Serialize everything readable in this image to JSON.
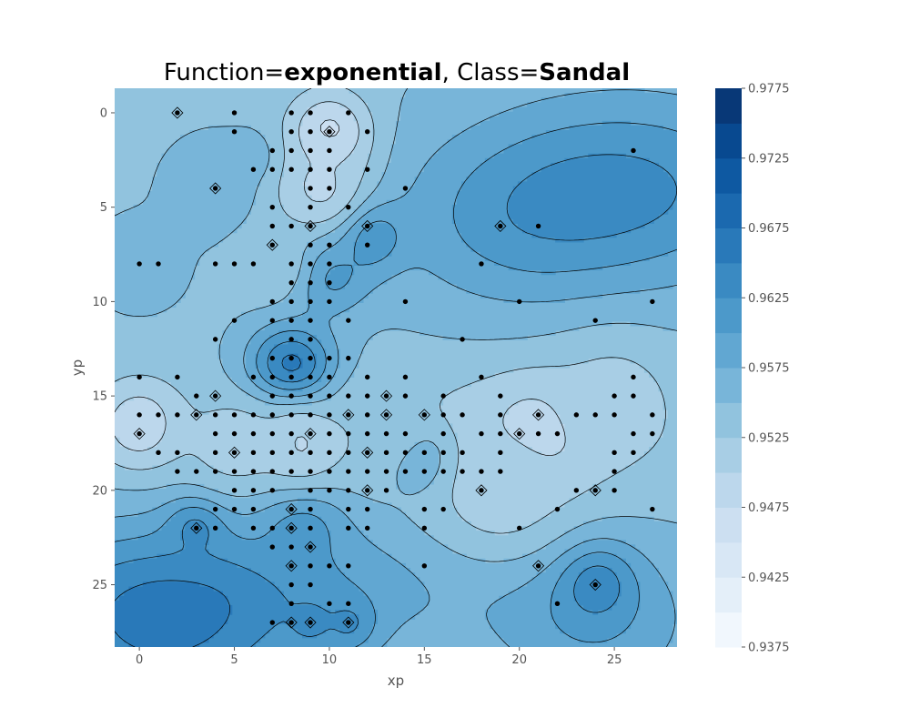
{
  "chart_data": {
    "type": "heatmap",
    "subtype": "filled-contour",
    "title_parts": [
      {
        "text": "Function=",
        "bold": false
      },
      {
        "text": "exponential",
        "bold": true
      },
      {
        "text": ", Class=",
        "bold": false
      },
      {
        "text": "Sandal",
        "bold": true
      }
    ],
    "xlabel": "xp",
    "ylabel": "yp",
    "xlim": [
      -1.3,
      28.3
    ],
    "ylim": [
      28.3,
      -1.3
    ],
    "y_inverted": true,
    "x_ticks": [
      0,
      5,
      10,
      15,
      20,
      25
    ],
    "y_ticks": [
      0,
      5,
      10,
      15,
      20,
      25
    ],
    "colorbar": {
      "min": 0.9375,
      "max": 0.9775,
      "step": 0.0025,
      "tick_labels": [
        "0.9375",
        "0.9425",
        "0.9475",
        "0.9525",
        "0.9575",
        "0.9625",
        "0.9675",
        "0.9725",
        "0.9775"
      ],
      "tick_values": [
        0.9375,
        0.9425,
        0.9475,
        0.9525,
        0.9575,
        0.9625,
        0.9675,
        0.9725,
        0.9775
      ],
      "colormap": "Blues"
    },
    "grid": false,
    "field_centers": [
      {
        "x": 8,
        "y": 13.5,
        "value": 0.9665,
        "sigma": 1.6
      },
      {
        "x": 12,
        "y": 6.5,
        "value": 0.9635,
        "sigma": 1.3
      },
      {
        "x": 10,
        "y": 8.5,
        "value": 0.9615,
        "sigma": 1.5
      },
      {
        "x": 3,
        "y": 22,
        "value": 0.9635,
        "sigma": 1.1
      },
      {
        "x": 24,
        "y": 25,
        "value": 0.9645,
        "sigma": 1.4
      },
      {
        "x": 8.5,
        "y": 22,
        "value": 0.9615,
        "sigma": 1.6
      },
      {
        "x": 9,
        "y": 27,
        "value": 0.963,
        "sigma": 1.2
      },
      {
        "x": 11,
        "y": 27,
        "value": 0.963,
        "sigma": 1.0
      },
      {
        "x": 21,
        "y": 5.8,
        "value": 0.9625,
        "sigma": 1.0
      },
      {
        "x": 15,
        "y": 18.5,
        "value": 0.9595,
        "sigma": 1.3
      },
      {
        "x": 4,
        "y": 4,
        "value": 0.9575,
        "sigma": 1.7
      },
      {
        "x": 6.5,
        "y": 2.5,
        "value": 0.9575,
        "sigma": 1.0
      },
      {
        "x": 0,
        "y": 8,
        "value": 0.9565,
        "sigma": 1.7
      },
      {
        "x": 10,
        "y": 1,
        "value": 0.9465,
        "sigma": 1.5
      },
      {
        "x": 9.5,
        "y": 4,
        "value": 0.9495,
        "sigma": 1.8
      },
      {
        "x": 0,
        "y": 16.5,
        "value": 0.948,
        "sigma": 1.7
      },
      {
        "x": 21,
        "y": 17,
        "value": 0.948,
        "sigma": 1.9
      },
      {
        "x": 8.5,
        "y": 17.5,
        "value": 0.9495,
        "sigma": 1.6
      },
      {
        "x": 19,
        "y": 20,
        "value": 0.951,
        "sigma": 2.6
      },
      {
        "x": 25,
        "y": 15,
        "value": 0.9515,
        "sigma": 2.2
      },
      {
        "x": 7,
        "y": 8,
        "value": 0.9525,
        "sigma": 1.4
      },
      {
        "x": 5,
        "y": 17.5,
        "value": 0.951,
        "sigma": 1.8
      },
      {
        "x": 12.5,
        "y": 16.5,
        "value": 0.9525,
        "sigma": 1.7
      }
    ],
    "points": [
      [
        2,
        0
      ],
      [
        5,
        0
      ],
      [
        8,
        0
      ],
      [
        9,
        0
      ],
      [
        11,
        0
      ],
      [
        5,
        1
      ],
      [
        8,
        1
      ],
      [
        9,
        1
      ],
      [
        10,
        1
      ],
      [
        12,
        1
      ],
      [
        7,
        2
      ],
      [
        8,
        2
      ],
      [
        9,
        2
      ],
      [
        10,
        2
      ],
      [
        26,
        2
      ],
      [
        6,
        3
      ],
      [
        7,
        3
      ],
      [
        8,
        3
      ],
      [
        9,
        3
      ],
      [
        10,
        3
      ],
      [
        12,
        3
      ],
      [
        4,
        4
      ],
      [
        9,
        4
      ],
      [
        10,
        4
      ],
      [
        14,
        4
      ],
      [
        7,
        5
      ],
      [
        9,
        5
      ],
      [
        11,
        5
      ],
      [
        7,
        6
      ],
      [
        8,
        6
      ],
      [
        9,
        6
      ],
      [
        12,
        6
      ],
      [
        19,
        6
      ],
      [
        21,
        6
      ],
      [
        7,
        7
      ],
      [
        9,
        7
      ],
      [
        10,
        7
      ],
      [
        12,
        7
      ],
      [
        0,
        8
      ],
      [
        1,
        8
      ],
      [
        4,
        8
      ],
      [
        5,
        8
      ],
      [
        6,
        8
      ],
      [
        8,
        8
      ],
      [
        9,
        8
      ],
      [
        10,
        8
      ],
      [
        18,
        8
      ],
      [
        8,
        9
      ],
      [
        9,
        9
      ],
      [
        10,
        9
      ],
      [
        7,
        10
      ],
      [
        8,
        10
      ],
      [
        9,
        10
      ],
      [
        10,
        10
      ],
      [
        14,
        10
      ],
      [
        20,
        10
      ],
      [
        27,
        10
      ],
      [
        5,
        11
      ],
      [
        7,
        11
      ],
      [
        8,
        11
      ],
      [
        9,
        11
      ],
      [
        11,
        11
      ],
      [
        24,
        11
      ],
      [
        4,
        12
      ],
      [
        8,
        12
      ],
      [
        9,
        12
      ],
      [
        17,
        12
      ],
      [
        7,
        13
      ],
      [
        8,
        13
      ],
      [
        9,
        13
      ],
      [
        10,
        13
      ],
      [
        11,
        13
      ],
      [
        0,
        14
      ],
      [
        2,
        14
      ],
      [
        6,
        14
      ],
      [
        7,
        14
      ],
      [
        8,
        14
      ],
      [
        9,
        14
      ],
      [
        10,
        14
      ],
      [
        12,
        14
      ],
      [
        14,
        14
      ],
      [
        18,
        14
      ],
      [
        26,
        14
      ],
      [
        3,
        15
      ],
      [
        4,
        15
      ],
      [
        7,
        15
      ],
      [
        8,
        15
      ],
      [
        9,
        15
      ],
      [
        10,
        15
      ],
      [
        11,
        15
      ],
      [
        12,
        15
      ],
      [
        13,
        15
      ],
      [
        14,
        15
      ],
      [
        16,
        15
      ],
      [
        19,
        15
      ],
      [
        25,
        15
      ],
      [
        26,
        15
      ],
      [
        0,
        16
      ],
      [
        1,
        16
      ],
      [
        2,
        16
      ],
      [
        3,
        16
      ],
      [
        4,
        16
      ],
      [
        5,
        16
      ],
      [
        6,
        16
      ],
      [
        7,
        16
      ],
      [
        8,
        16
      ],
      [
        9,
        16
      ],
      [
        10,
        16
      ],
      [
        11,
        16
      ],
      [
        12,
        16
      ],
      [
        13,
        16
      ],
      [
        15,
        16
      ],
      [
        16,
        16
      ],
      [
        17,
        16
      ],
      [
        19,
        16
      ],
      [
        21,
        16
      ],
      [
        23,
        16
      ],
      [
        24,
        16
      ],
      [
        25,
        16
      ],
      [
        27,
        16
      ],
      [
        0,
        17
      ],
      [
        4,
        17
      ],
      [
        5,
        17
      ],
      [
        6,
        17
      ],
      [
        7,
        17
      ],
      [
        8,
        17
      ],
      [
        9,
        17
      ],
      [
        10,
        17
      ],
      [
        11,
        17
      ],
      [
        12,
        17
      ],
      [
        13,
        17
      ],
      [
        14,
        17
      ],
      [
        16,
        17
      ],
      [
        18,
        17
      ],
      [
        19,
        17
      ],
      [
        20,
        17
      ],
      [
        21,
        17
      ],
      [
        22,
        17
      ],
      [
        26,
        17
      ],
      [
        27,
        17
      ],
      [
        1,
        18
      ],
      [
        2,
        18
      ],
      [
        4,
        18
      ],
      [
        5,
        18
      ],
      [
        6,
        18
      ],
      [
        7,
        18
      ],
      [
        8,
        18
      ],
      [
        9,
        18
      ],
      [
        10,
        18
      ],
      [
        11,
        18
      ],
      [
        12,
        18
      ],
      [
        13,
        18
      ],
      [
        14,
        18
      ],
      [
        15,
        18
      ],
      [
        16,
        18
      ],
      [
        17,
        18
      ],
      [
        19,
        18
      ],
      [
        25,
        18
      ],
      [
        26,
        18
      ],
      [
        2,
        19
      ],
      [
        3,
        19
      ],
      [
        4,
        19
      ],
      [
        5,
        19
      ],
      [
        6,
        19
      ],
      [
        7,
        19
      ],
      [
        8,
        19
      ],
      [
        9,
        19
      ],
      [
        10,
        19
      ],
      [
        11,
        19
      ],
      [
        12,
        19
      ],
      [
        13,
        19
      ],
      [
        14,
        19
      ],
      [
        15,
        19
      ],
      [
        16,
        19
      ],
      [
        17,
        19
      ],
      [
        18,
        19
      ],
      [
        19,
        19
      ],
      [
        25,
        19
      ],
      [
        5,
        20
      ],
      [
        6,
        20
      ],
      [
        7,
        20
      ],
      [
        9,
        20
      ],
      [
        10,
        20
      ],
      [
        11,
        20
      ],
      [
        12,
        20
      ],
      [
        13,
        20
      ],
      [
        18,
        20
      ],
      [
        23,
        20
      ],
      [
        24,
        20
      ],
      [
        25,
        20
      ],
      [
        4,
        21
      ],
      [
        5,
        21
      ],
      [
        6,
        21
      ],
      [
        8,
        21
      ],
      [
        9,
        21
      ],
      [
        11,
        21
      ],
      [
        12,
        21
      ],
      [
        15,
        21
      ],
      [
        16,
        21
      ],
      [
        22,
        21
      ],
      [
        27,
        21
      ],
      [
        3,
        22
      ],
      [
        4,
        22
      ],
      [
        6,
        22
      ],
      [
        7,
        22
      ],
      [
        8,
        22
      ],
      [
        9,
        22
      ],
      [
        11,
        22
      ],
      [
        12,
        22
      ],
      [
        15,
        22
      ],
      [
        20,
        22
      ],
      [
        7,
        23
      ],
      [
        8,
        23
      ],
      [
        9,
        23
      ],
      [
        8,
        24
      ],
      [
        9,
        24
      ],
      [
        10,
        24
      ],
      [
        11,
        24
      ],
      [
        15,
        24
      ],
      [
        21,
        24
      ],
      [
        8,
        25
      ],
      [
        9,
        25
      ],
      [
        24,
        25
      ],
      [
        8,
        26
      ],
      [
        10,
        26
      ],
      [
        11,
        26
      ],
      [
        22,
        26
      ],
      [
        7,
        27
      ],
      [
        8,
        27
      ],
      [
        9,
        27
      ],
      [
        11,
        27
      ]
    ],
    "diamond_points": [
      [
        2,
        0
      ],
      [
        10,
        1
      ],
      [
        4,
        4
      ],
      [
        9,
        6
      ],
      [
        12,
        6
      ],
      [
        19,
        6
      ],
      [
        7,
        7
      ],
      [
        4,
        15
      ],
      [
        13,
        15
      ],
      [
        3,
        16
      ],
      [
        11,
        16
      ],
      [
        13,
        16
      ],
      [
        15,
        16
      ],
      [
        21,
        16
      ],
      [
        0,
        17
      ],
      [
        9,
        17
      ],
      [
        20,
        17
      ],
      [
        5,
        18
      ],
      [
        12,
        18
      ],
      [
        12,
        20
      ],
      [
        18,
        20
      ],
      [
        24,
        20
      ],
      [
        8,
        21
      ],
      [
        3,
        22
      ],
      [
        8,
        22
      ],
      [
        9,
        23
      ],
      [
        8,
        24
      ],
      [
        21,
        24
      ],
      [
        24,
        25
      ],
      [
        8,
        27
      ],
      [
        9,
        27
      ],
      [
        11,
        27
      ]
    ]
  }
}
